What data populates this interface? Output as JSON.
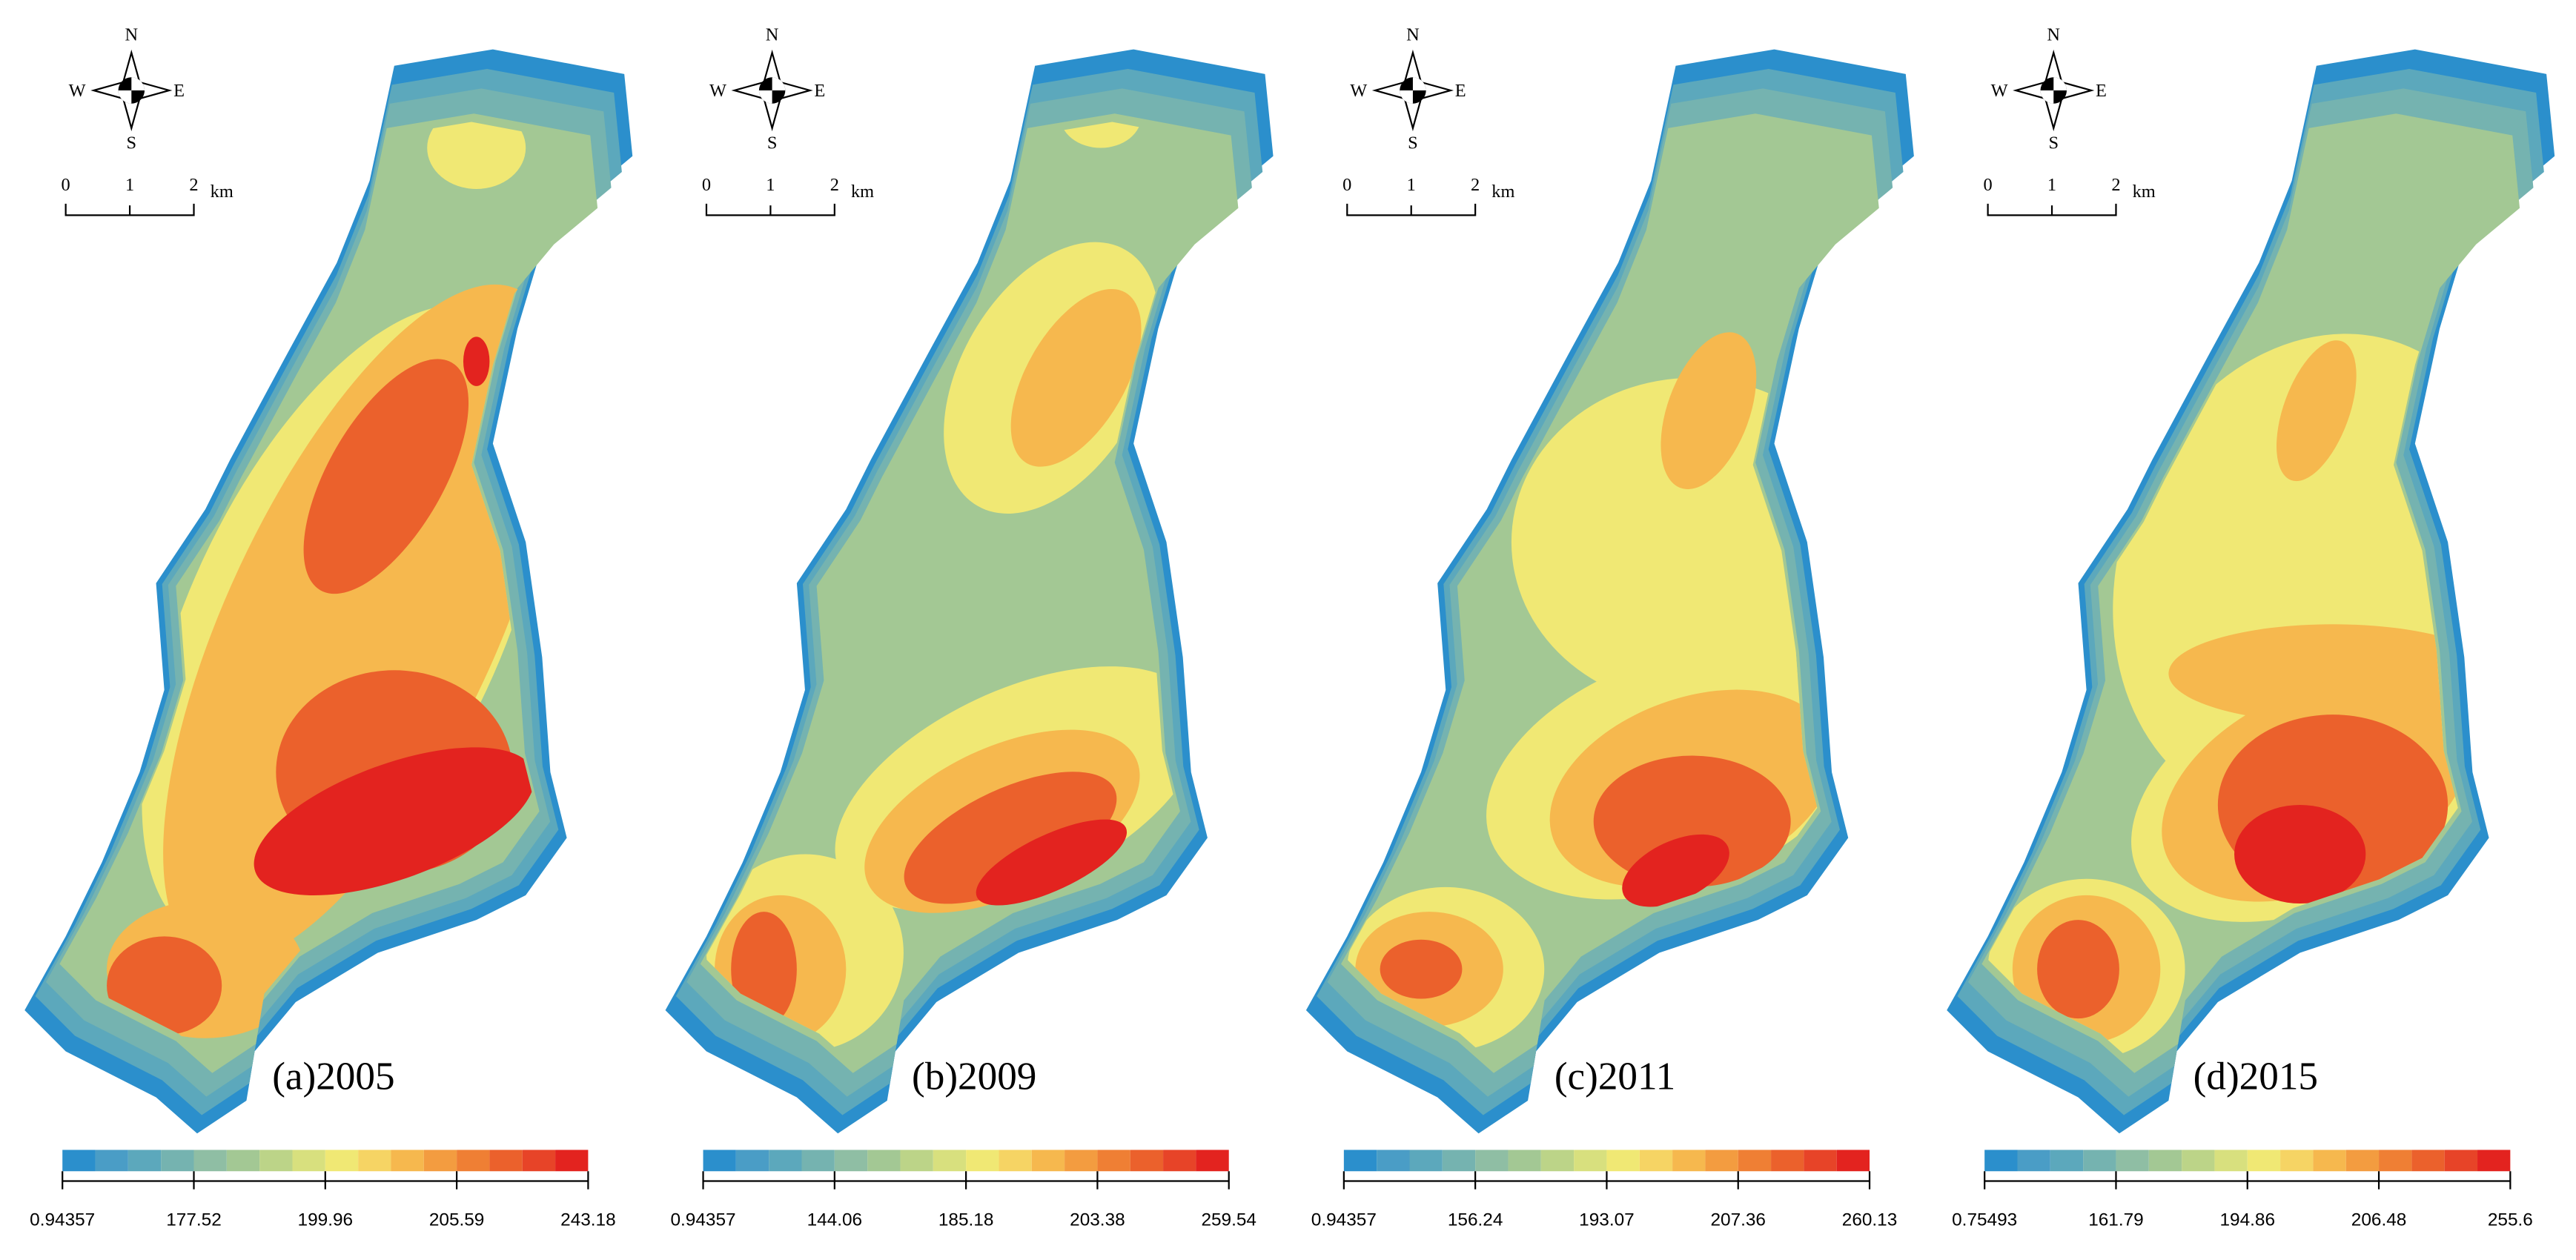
{
  "panels": [
    {
      "label": "(a)2005",
      "legend_ticks": [
        "0.94357",
        "177.52",
        "199.96",
        "205.59",
        "243.18"
      ]
    },
    {
      "label": "(b)2009",
      "legend_ticks": [
        "0.94357",
        "144.06",
        "185.18",
        "203.38",
        "259.54"
      ]
    },
    {
      "label": "(c)2011",
      "legend_ticks": [
        "0.94357",
        "156.24",
        "193.07",
        "207.36",
        "260.13"
      ]
    },
    {
      "label": "(d)2015",
      "legend_ticks": [
        "0.75493",
        "161.79",
        "194.86",
        "206.48",
        "255.6"
      ]
    }
  ],
  "compass": {
    "n": "N",
    "s": "S",
    "w": "W",
    "e": "E"
  },
  "scale_bar": {
    "labels": [
      "0",
      "1",
      "2"
    ],
    "unit": "km"
  },
  "palette": [
    "#2b8fcc",
    "#4a9dc6",
    "#5ca8bc",
    "#75b3b0",
    "#8fbea4",
    "#a3c894",
    "#bcd488",
    "#d8e07e",
    "#f0e874",
    "#f6d464",
    "#f6b84e",
    "#f39c40",
    "#ef7f34",
    "#eb612c",
    "#e74428",
    "#e3231f"
  ]
}
